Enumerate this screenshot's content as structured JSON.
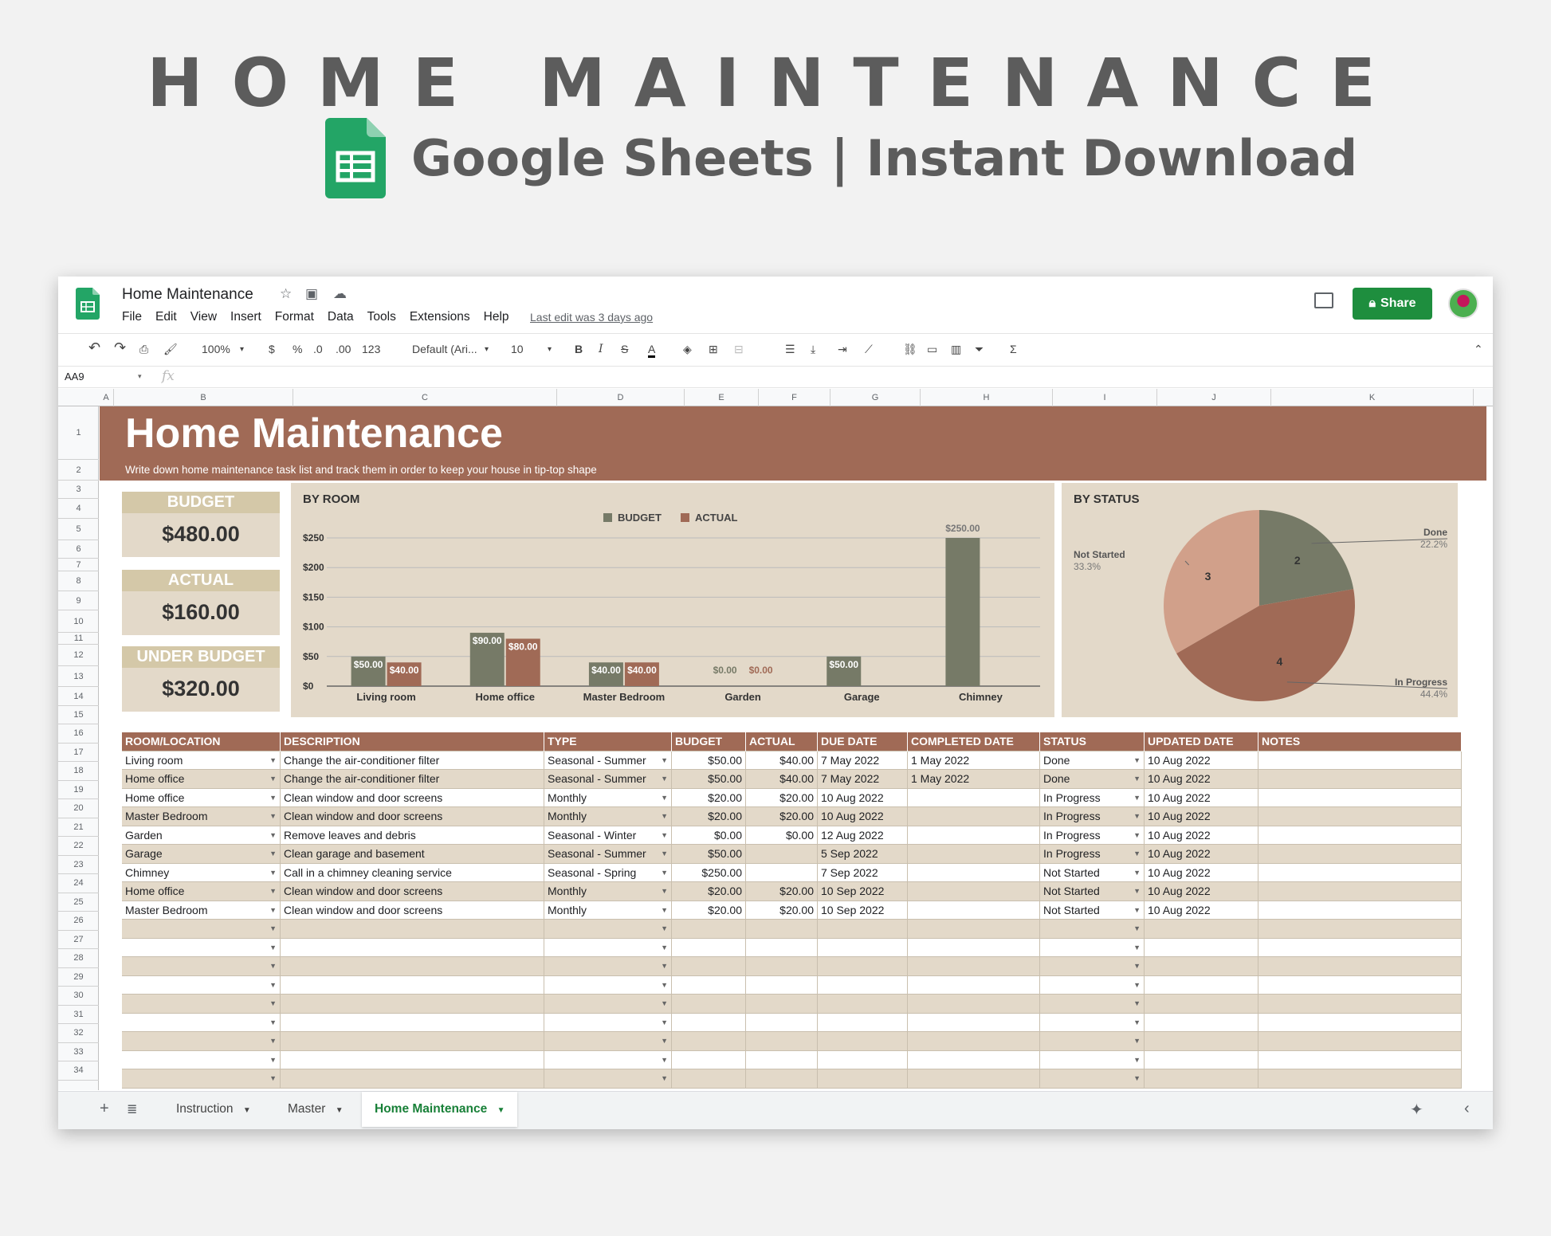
{
  "banner": {
    "title": "HOME MAINTENANCE",
    "subtitle": "Google Sheets | Instant Download"
  },
  "app": {
    "doc_title": "Home Maintenance",
    "menu": [
      "File",
      "Edit",
      "View",
      "Insert",
      "Format",
      "Data",
      "Tools",
      "Extensions",
      "Help"
    ],
    "last_edit": "Last edit was 3 days ago",
    "share_label": "Share",
    "toolbar": {
      "zoom": "100%",
      "currency": "$",
      "percent": "%",
      "dec_less": ".0",
      "dec_more": ".00",
      "format_more": "123",
      "font": "Default (Ari...",
      "font_size": "10"
    },
    "namebox": "AA9",
    "fx": "fx",
    "columns": [
      "A",
      "B",
      "C",
      "D",
      "E",
      "F",
      "G",
      "H",
      "I",
      "J",
      "K"
    ],
    "rows": [
      "1",
      "2",
      "3",
      "4",
      "5",
      "6",
      "7",
      "8",
      "9",
      "10",
      "11",
      "12",
      "13",
      "14",
      "15",
      "16",
      "17",
      "18",
      "19",
      "20",
      "21",
      "22",
      "23",
      "24",
      "25",
      "26",
      "27",
      "28",
      "29",
      "30",
      "31",
      "32",
      "33",
      "34"
    ]
  },
  "sheet": {
    "title": "Home Maintenance",
    "subtitle": "Write down home maintenance task list and track them in order to keep your house in tip-top shape",
    "kpis": [
      {
        "label": "BUDGET",
        "value": "$480.00"
      },
      {
        "label": "ACTUAL",
        "value": "$160.00"
      },
      {
        "label": "UNDER BUDGET",
        "value": "$320.00"
      }
    ],
    "colors": {
      "brand": "#a06a56",
      "budget": "#767a67",
      "actual": "#a06a56",
      "panel": "#e3d9c9",
      "done": "#767a67",
      "in_progress": "#a06a56",
      "not_started": "#d1a08a"
    }
  },
  "chart_data": [
    {
      "type": "bar",
      "title": "BY ROOM",
      "categories": [
        "Living room",
        "Home office",
        "Master Bedroom",
        "Garden",
        "Garage",
        "Chimney"
      ],
      "series": [
        {
          "name": "BUDGET",
          "values": [
            50,
            90,
            40,
            0,
            50,
            250
          ],
          "labels": [
            "$50.00",
            "$90.00",
            "$40.00",
            "$0.00",
            "$50.00",
            "$250.00"
          ]
        },
        {
          "name": "ACTUAL",
          "values": [
            40,
            80,
            40,
            0,
            0,
            0
          ],
          "labels": [
            "$40.00",
            "$80.00",
            "$40.00",
            "$0.00",
            "",
            ""
          ]
        }
      ],
      "yticks": [
        "$0",
        "$50",
        "$100",
        "$150",
        "$200",
        "$250"
      ],
      "ylim": [
        0,
        250
      ],
      "legend": "top-center",
      "grid": true
    },
    {
      "type": "pie",
      "title": "BY STATUS",
      "slices": [
        {
          "name": "Done",
          "value": 2,
          "percent": "22.2%"
        },
        {
          "name": "In Progress",
          "value": 4,
          "percent": "44.4%"
        },
        {
          "name": "Not Started",
          "value": 3,
          "percent": "33.3%"
        }
      ]
    }
  ],
  "table": {
    "headers": [
      "ROOM/LOCATION",
      "DESCRIPTION",
      "TYPE",
      "BUDGET",
      "ACTUAL",
      "DUE DATE",
      "COMPLETED DATE",
      "STATUS",
      "UPDATED DATE",
      "NOTES"
    ],
    "rows": [
      [
        "Living room",
        "Change the air-conditioner filter",
        "Seasonal - Summer",
        "$50.00",
        "$40.00",
        "7 May 2022",
        "1 May 2022",
        "Done",
        "10 Aug 2022",
        ""
      ],
      [
        "Home office",
        "Change the air-conditioner filter",
        "Seasonal - Summer",
        "$50.00",
        "$40.00",
        "7 May 2022",
        "1 May 2022",
        "Done",
        "10 Aug 2022",
        ""
      ],
      [
        "Home office",
        "Clean window and door screens",
        "Monthly",
        "$20.00",
        "$20.00",
        "10 Aug 2022",
        "",
        "In Progress",
        "10 Aug 2022",
        ""
      ],
      [
        "Master Bedroom",
        "Clean window and door screens",
        "Monthly",
        "$20.00",
        "$20.00",
        "10 Aug 2022",
        "",
        "In Progress",
        "10 Aug 2022",
        ""
      ],
      [
        "Garden",
        "Remove leaves and debris",
        "Seasonal - Winter",
        "$0.00",
        "$0.00",
        "12 Aug 2022",
        "",
        "In Progress",
        "10 Aug 2022",
        ""
      ],
      [
        "Garage",
        "Clean garage and basement",
        "Seasonal - Summer",
        "$50.00",
        "",
        "5 Sep 2022",
        "",
        "In Progress",
        "10 Aug 2022",
        ""
      ],
      [
        "Chimney",
        "Call in a chimney cleaning service",
        "Seasonal - Spring",
        "$250.00",
        "",
        "7 Sep 2022",
        "",
        "Not Started",
        "10 Aug 2022",
        ""
      ],
      [
        "Home office",
        "Clean window and door screens",
        "Monthly",
        "$20.00",
        "$20.00",
        "10 Sep 2022",
        "",
        "Not Started",
        "10 Aug 2022",
        ""
      ],
      [
        "Master Bedroom",
        "Clean window and door screens",
        "Monthly",
        "$20.00",
        "$20.00",
        "10 Sep 2022",
        "",
        "Not Started",
        "10 Aug 2022",
        ""
      ],
      [
        "",
        "",
        "",
        "",
        "",
        "",
        "",
        "",
        "",
        ""
      ],
      [
        "",
        "",
        "",
        "",
        "",
        "",
        "",
        "",
        "",
        ""
      ],
      [
        "",
        "",
        "",
        "",
        "",
        "",
        "",
        "",
        "",
        ""
      ],
      [
        "",
        "",
        "",
        "",
        "",
        "",
        "",
        "",
        "",
        ""
      ],
      [
        "",
        "",
        "",
        "",
        "",
        "",
        "",
        "",
        "",
        ""
      ],
      [
        "",
        "",
        "",
        "",
        "",
        "",
        "",
        "",
        "",
        ""
      ],
      [
        "",
        "",
        "",
        "",
        "",
        "",
        "",
        "",
        "",
        ""
      ],
      [
        "",
        "",
        "",
        "",
        "",
        "",
        "",
        "",
        "",
        ""
      ],
      [
        "",
        "",
        "",
        "",
        "",
        "",
        "",
        "",
        "",
        ""
      ]
    ]
  },
  "tabs": [
    {
      "label": "Instruction",
      "active": false
    },
    {
      "label": "Master",
      "active": false
    },
    {
      "label": "Home Maintenance",
      "active": true
    }
  ]
}
